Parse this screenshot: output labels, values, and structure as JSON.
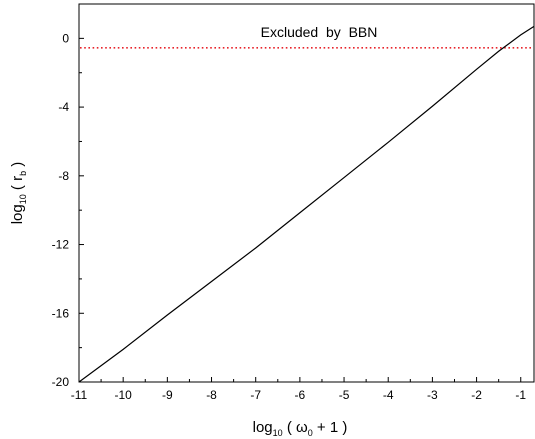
{
  "chart_data": {
    "type": "line",
    "xlim": [
      -11,
      -0.7
    ],
    "ylim": [
      -20,
      2
    ],
    "x_ticks": [
      -11,
      -10,
      -9,
      -8,
      -7,
      -6,
      -5,
      -4,
      -3,
      -2,
      -1
    ],
    "y_ticks": [
      0,
      -4,
      -8,
      -12,
      -16,
      -20
    ],
    "x_tick_labels": [
      "-11",
      "-10",
      "-9",
      "-8",
      "-7",
      "-6",
      "-5",
      "-4",
      "-3",
      "-2",
      "-1"
    ],
    "y_tick_labels": [
      "0",
      "-4",
      "-8",
      "-12",
      "-16",
      "-20"
    ],
    "xlabel": {
      "prefix": "log",
      "prefix_sub": "10",
      "open": " ( ",
      "symbol": "ω",
      "symbol_sub": "0",
      "rest": " + 1 )"
    },
    "ylabel": {
      "prefix": "log",
      "prefix_sub": "10",
      "open": " ( ",
      "symbol": "r",
      "symbol_sub": "b",
      "close": " )"
    },
    "annotation": "Excluded  by  BBN",
    "reference_line": {
      "y": -0.55,
      "style": "dotted",
      "color": "#e8232a"
    },
    "series": [
      {
        "color": "#000000",
        "points": [
          [
            -11,
            -20
          ],
          [
            -10,
            -18.1
          ],
          [
            -9,
            -16.1
          ],
          [
            -8,
            -14.15
          ],
          [
            -7,
            -12.2
          ],
          [
            -6,
            -10.15
          ],
          [
            -5,
            -8.1
          ],
          [
            -4,
            -6.05
          ],
          [
            -3,
            -3.95
          ],
          [
            -2,
            -1.8
          ],
          [
            -1.5,
            -0.75
          ],
          [
            -1,
            0.2
          ],
          [
            -0.7,
            0.7
          ]
        ]
      }
    ],
    "grid": false
  }
}
